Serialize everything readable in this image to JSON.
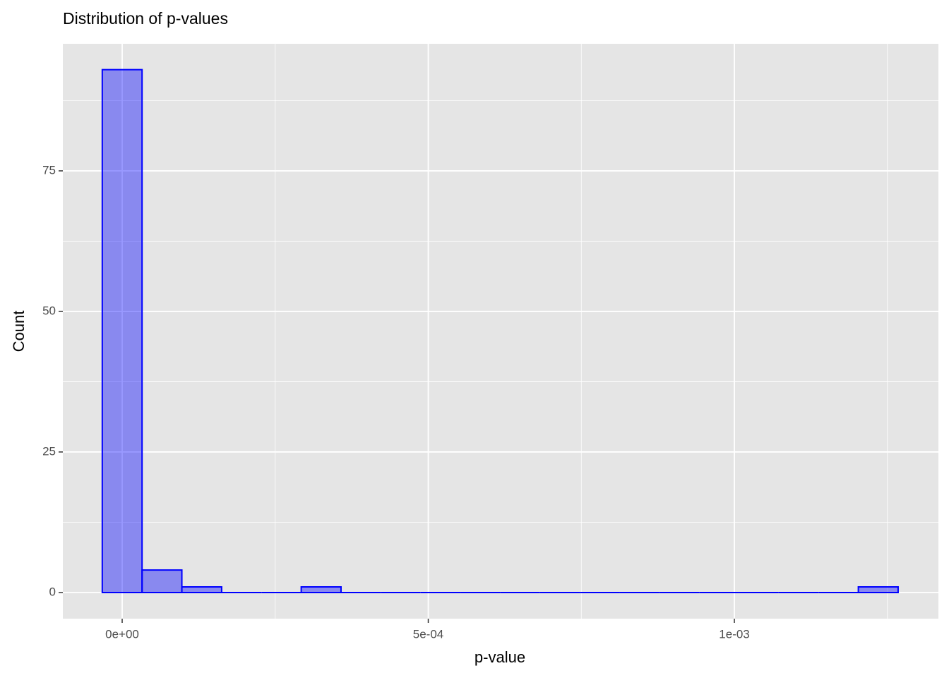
{
  "chart_data": {
    "type": "histogram",
    "title": "Distribution of p-values",
    "x_label": "p-value",
    "y_label": "Count",
    "bins": [
      -3.25e-05,
      3.25e-05,
      9.75e-05,
      0.0001625,
      0.0002275,
      0.0002925,
      0.0003575,
      0.0004225,
      0.0004875,
      0.0005525,
      0.0006175,
      0.0006825,
      0.0007475,
      0.0008125,
      0.0008775,
      0.0009425,
      0.0010075,
      0.0010725,
      0.0011375,
      0.0012025,
      0.0012675
    ],
    "values": [
      93,
      4,
      1,
      0,
      0,
      1,
      0,
      0,
      0,
      0,
      0,
      0,
      0,
      0,
      0,
      0,
      0,
      0,
      0,
      1
    ],
    "color": "#0000ff",
    "xlim": [
      -9.69e-05,
      0.0013333
    ],
    "xticks": [
      {
        "value": 0,
        "label": "0e+00"
      },
      {
        "value": 0.0005,
        "label": "5e-04"
      },
      {
        "value": 0.001,
        "label": "1e-03"
      }
    ],
    "xminor": [
      0.00025,
      0.00075,
      0.00125
    ],
    "ylim": [
      -4.65,
      97.6
    ],
    "yticks": [
      0,
      25,
      50,
      75
    ],
    "yminor": [
      12.5,
      37.5,
      62.5,
      87.5
    ],
    "grid": true
  }
}
